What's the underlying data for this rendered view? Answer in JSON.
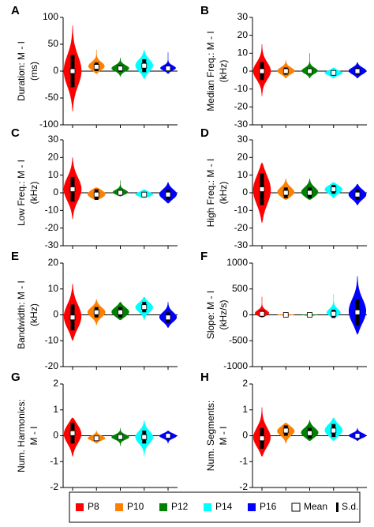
{
  "groups": [
    {
      "name": "P8",
      "color": "#ff0000"
    },
    {
      "name": "P10",
      "color": "#ff8000"
    },
    {
      "name": "P12",
      "color": "#008000"
    },
    {
      "name": "P14",
      "color": "#00ffff"
    },
    {
      "name": "P16",
      "color": "#0000ff"
    }
  ],
  "mean_label": "Mean",
  "sd_label": "S.d.",
  "chart_data": [
    {
      "type": "violin",
      "panel_label": "A",
      "ylabel": [
        "Duration: M - I",
        "(ms)"
      ],
      "ylim": [
        -100,
        100
      ],
      "yticks": [
        -100,
        -50,
        0,
        50,
        100
      ],
      "mean": [
        0,
        8,
        5,
        10,
        5
      ],
      "sd": [
        30,
        8,
        6,
        12,
        5
      ],
      "min": [
        -75,
        -5,
        -10,
        -15,
        -5
      ],
      "max": [
        85,
        40,
        25,
        40,
        35
      ]
    },
    {
      "type": "violin",
      "panel_label": "B",
      "ylabel": [
        "Median Freq.: M - I",
        "(kHz)"
      ],
      "ylim": [
        -30,
        30
      ],
      "yticks": [
        -30,
        -20,
        -10,
        0,
        10,
        20,
        30
      ],
      "mean": [
        0,
        0,
        0,
        -1,
        0
      ],
      "sd": [
        5,
        2,
        1.5,
        1.5,
        2
      ],
      "min": [
        -14,
        -4,
        -4,
        -4,
        -4
      ],
      "max": [
        15,
        6,
        10,
        2,
        5
      ]
    },
    {
      "type": "violin",
      "panel_label": "C",
      "ylabel": [
        "Low Freq.: M - I",
        "(kHz)"
      ],
      "ylim": [
        -30,
        30
      ],
      "yticks": [
        -30,
        -20,
        -10,
        0,
        10,
        20,
        30
      ],
      "mean": [
        2,
        -1,
        0,
        -1,
        -1
      ],
      "sd": [
        7,
        3,
        1.5,
        1.5,
        3
      ],
      "min": [
        -15,
        -4,
        -2,
        -3,
        -6
      ],
      "max": [
        20,
        3,
        7,
        2,
        6
      ]
    },
    {
      "type": "violin",
      "panel_label": "D",
      "ylabel": [
        "High Freq.: M - I",
        "(kHz)"
      ],
      "ylim": [
        -30,
        30
      ],
      "yticks": [
        -30,
        -20,
        -10,
        0,
        10,
        20,
        30
      ],
      "mean": [
        2,
        0,
        0,
        2,
        -1
      ],
      "sd": [
        9,
        3,
        3,
        2.5,
        3
      ],
      "min": [
        -17,
        -4,
        -4,
        -3,
        -7
      ],
      "max": [
        17,
        8,
        8,
        6,
        5
      ]
    },
    {
      "type": "violin",
      "panel_label": "E",
      "ylabel": [
        "Bandwidth: M - I",
        "(kHz)"
      ],
      "ylim": [
        -20,
        20
      ],
      "yticks": [
        -20,
        -10,
        0,
        10,
        20
      ],
      "mean": [
        -1,
        1,
        1,
        3,
        -1
      ],
      "sd": [
        5,
        2,
        2,
        2,
        2
      ],
      "min": [
        -10,
        -4,
        -2,
        -2,
        -5
      ],
      "max": [
        12,
        6,
        5,
        7,
        5
      ]
    },
    {
      "type": "violin",
      "panel_label": "F",
      "ylabel": [
        "Slope: M - I",
        "(kHz/s)"
      ],
      "ylim": [
        -1000,
        1000
      ],
      "yticks": [
        -1000,
        -500,
        0,
        500,
        1000
      ],
      "mean": [
        20,
        0,
        0,
        20,
        50
      ],
      "sd": [
        60,
        10,
        10,
        80,
        250
      ],
      "min": [
        -50,
        -20,
        -50,
        -50,
        -380
      ],
      "max": [
        350,
        20,
        20,
        400,
        750
      ]
    },
    {
      "type": "violin",
      "panel_label": "G",
      "ylabel": [
        "Num. Harmonics:",
        "M - I"
      ],
      "ylim": [
        -2,
        2
      ],
      "yticks": [
        -2,
        -1,
        0,
        1,
        2
      ],
      "mean": [
        0.1,
        -0.1,
        -0.05,
        -0.05,
        0
      ],
      "sd": [
        0.4,
        0.1,
        0.1,
        0.25,
        0.1
      ],
      "min": [
        -0.8,
        -0.3,
        -0.4,
        -0.8,
        -0.3
      ],
      "max": [
        0.7,
        0.2,
        0.3,
        0.6,
        0.2
      ]
    },
    {
      "type": "violin",
      "panel_label": "H",
      "ylabel": [
        "Num. Segments:",
        "M - I"
      ],
      "ylim": [
        -2,
        2
      ],
      "yticks": [
        -2,
        -1,
        0,
        1,
        2
      ],
      "mean": [
        -0.1,
        0.2,
        0.1,
        0.2,
        0
      ],
      "sd": [
        0.4,
        0.2,
        0.2,
        0.25,
        0.1
      ],
      "min": [
        -0.8,
        -0.3,
        -0.2,
        -0.2,
        -0.2
      ],
      "max": [
        1.1,
        0.5,
        0.6,
        0.7,
        0.3
      ]
    }
  ]
}
